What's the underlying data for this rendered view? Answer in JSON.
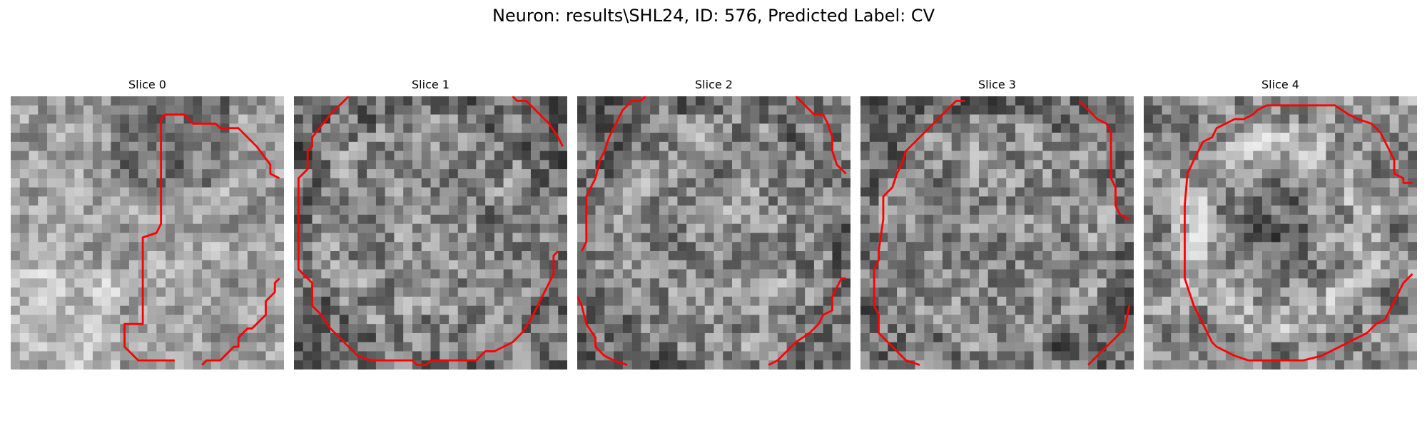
{
  "figure": {
    "title": "Neuron: results\\SHL24, ID: 576, Predicted Label: CV"
  },
  "slices": [
    {
      "label": "Slice 0",
      "seed": 11,
      "mode": "bright",
      "contour": "slice0"
    },
    {
      "label": "Slice 1",
      "seed": 23,
      "mode": "mid",
      "contour": "slice1"
    },
    {
      "label": "Slice 2",
      "seed": 37,
      "mode": "mid",
      "contour": "slice2"
    },
    {
      "label": "Slice 3",
      "seed": 53,
      "mode": "mid",
      "contour": "slice3"
    },
    {
      "label": "Slice 4",
      "seed": 71,
      "mode": "ring",
      "contour": "slice4"
    }
  ],
  "colors": {
    "contour": "#ff0000"
  }
}
